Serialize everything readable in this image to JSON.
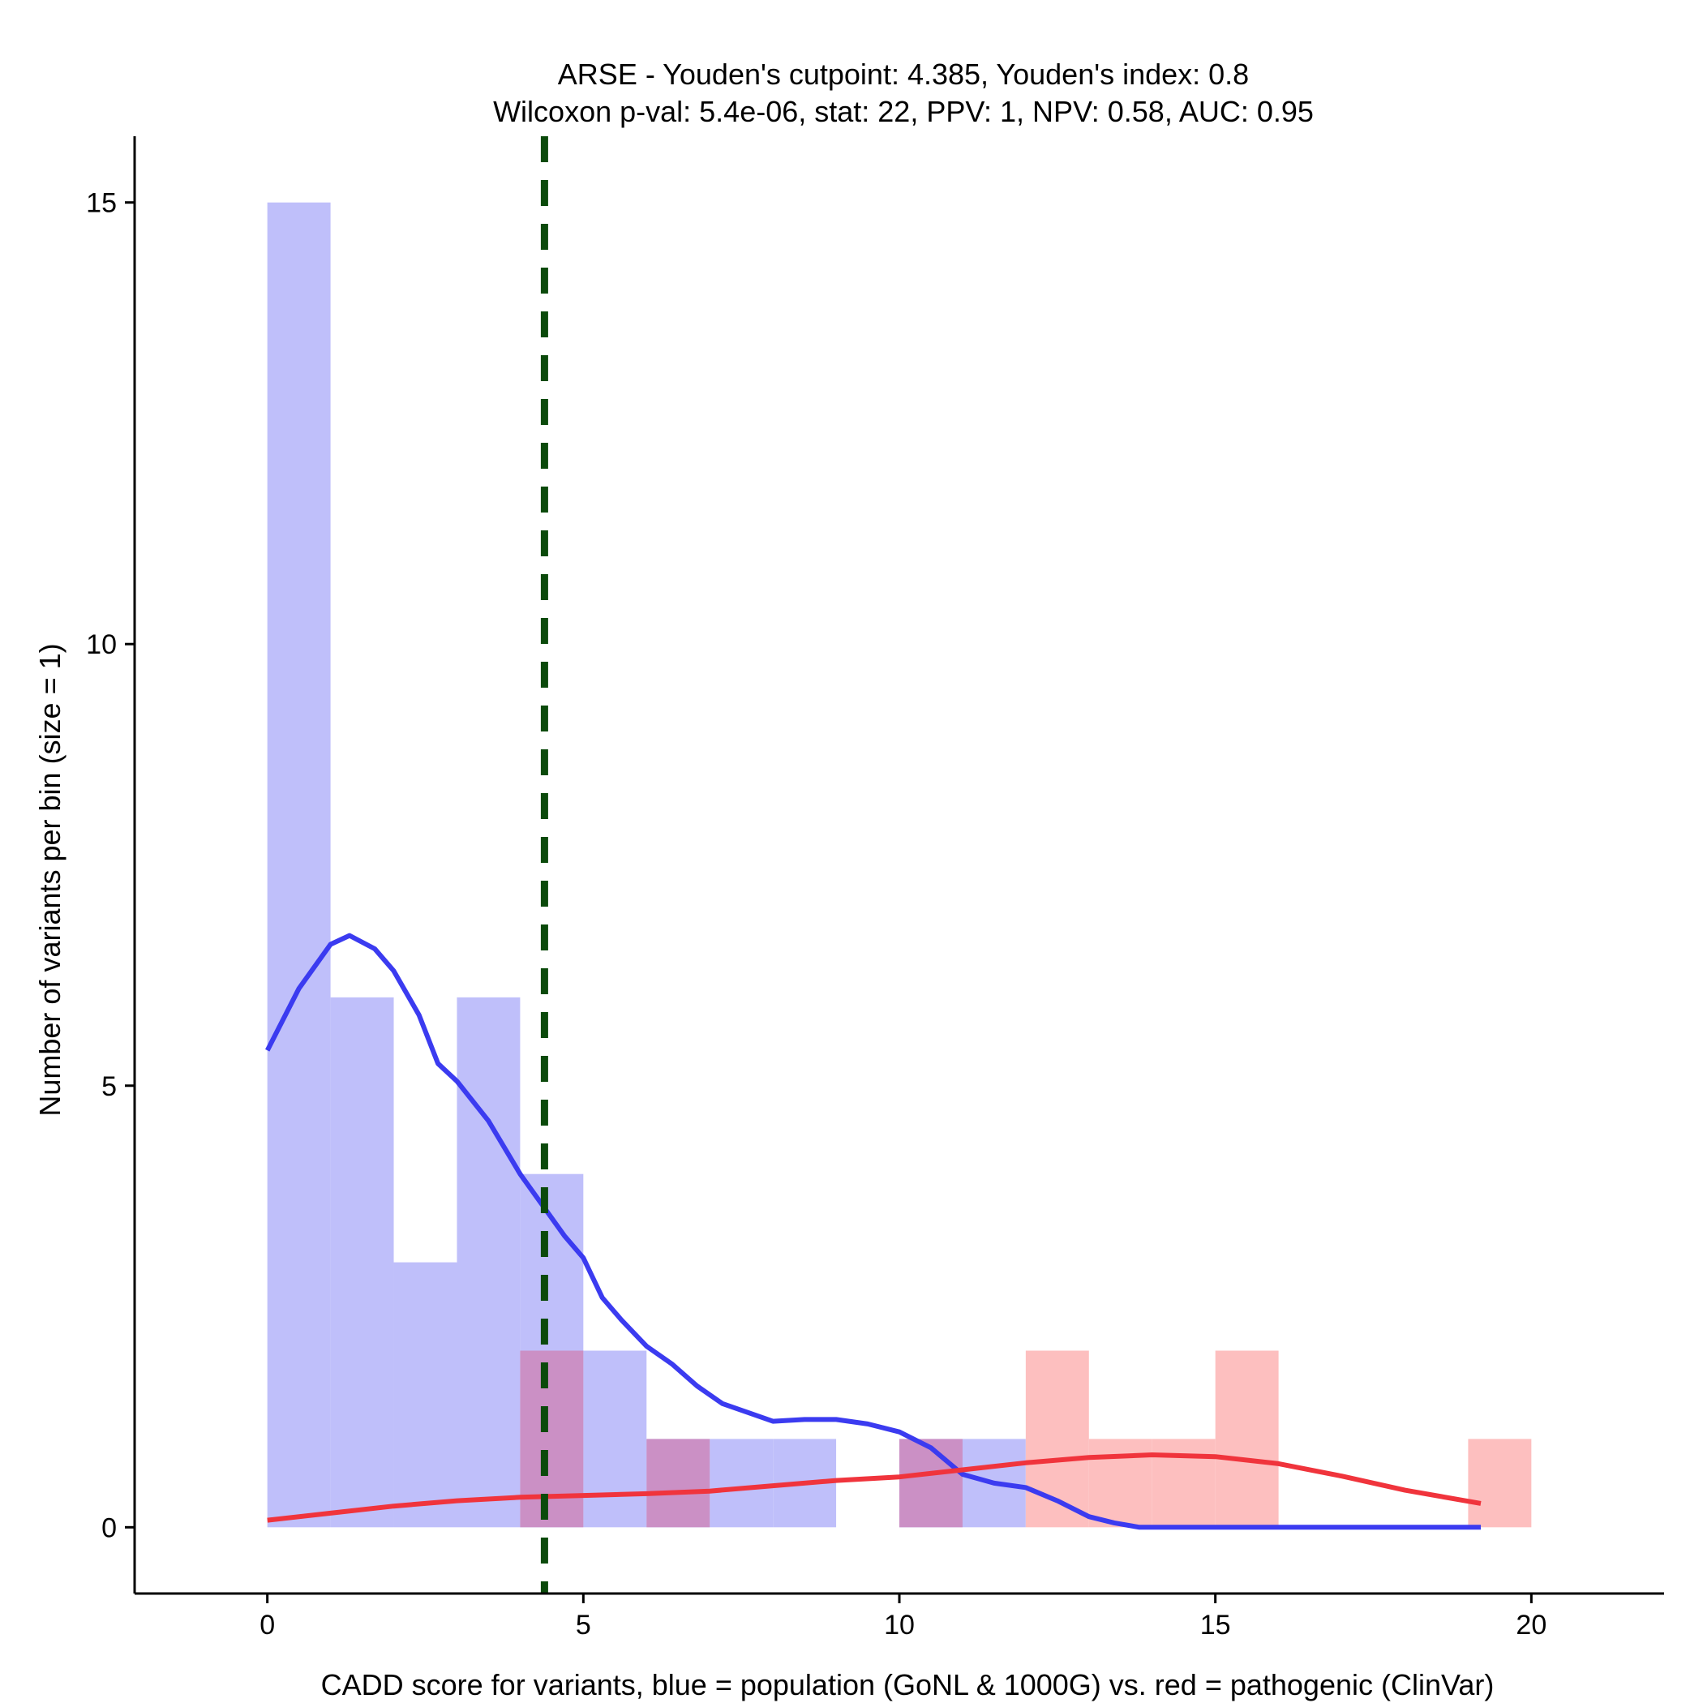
{
  "chart_data": {
    "type": "histogram",
    "title_line1": "ARSE - Youden's cutpoint: 4.385, Youden's index: 0.8",
    "title_line2": "Wilcoxon p-val: 5.4e-06, stat: 22, PPV: 1, NPV: 0.58, AUC: 0.95",
    "xlabel": "CADD score for variants, blue = population (GoNL & 1000G) vs. red = pathogenic (ClinVar)",
    "ylabel": "Number of variants per bin (size = 1)",
    "xlim": [
      -2.1,
      22.1
    ],
    "ylim": [
      -0.75,
      15.75
    ],
    "x_ticks": [
      0,
      5,
      10,
      15,
      20
    ],
    "y_ticks": [
      0,
      5,
      10,
      15
    ],
    "bin_size": 1,
    "cutpoint": 4.385,
    "colors": {
      "population_bar": "#bfbffa",
      "pathogenic_bar": "#fdbfbf",
      "overlap_bar": "#cb90c5",
      "population_line": "#3b3bf0",
      "pathogenic_line": "#f0343c",
      "cutpoint_line": "#0b4a0b"
    },
    "series": [
      {
        "name": "population",
        "bins": [
          {
            "start": 0,
            "count": 15
          },
          {
            "start": 1,
            "count": 6
          },
          {
            "start": 2,
            "count": 3
          },
          {
            "start": 3,
            "count": 6
          },
          {
            "start": 4,
            "count": 4
          },
          {
            "start": 5,
            "count": 2
          },
          {
            "start": 6,
            "count": 1
          },
          {
            "start": 7,
            "count": 1
          },
          {
            "start": 8,
            "count": 1
          },
          {
            "start": 10,
            "count": 1
          },
          {
            "start": 11,
            "count": 1
          }
        ],
        "density_curve": [
          [
            0,
            5.4
          ],
          [
            0.5,
            6.1
          ],
          [
            1.0,
            6.6
          ],
          [
            1.3,
            6.7
          ],
          [
            1.7,
            6.55
          ],
          [
            2.0,
            6.3
          ],
          [
            2.4,
            5.8
          ],
          [
            2.7,
            5.25
          ],
          [
            3.0,
            5.05
          ],
          [
            3.5,
            4.6
          ],
          [
            4.0,
            4.0
          ],
          [
            4.3,
            3.7
          ],
          [
            4.7,
            3.3
          ],
          [
            5.0,
            3.05
          ],
          [
            5.3,
            2.6
          ],
          [
            5.6,
            2.35
          ],
          [
            6.0,
            2.05
          ],
          [
            6.4,
            1.85
          ],
          [
            6.8,
            1.6
          ],
          [
            7.2,
            1.4
          ],
          [
            7.6,
            1.3
          ],
          [
            8.0,
            1.2
          ],
          [
            8.5,
            1.22
          ],
          [
            9.0,
            1.22
          ],
          [
            9.5,
            1.17
          ],
          [
            10.0,
            1.08
          ],
          [
            10.5,
            0.9
          ],
          [
            11.0,
            0.6
          ],
          [
            11.5,
            0.5
          ],
          [
            12.0,
            0.45
          ],
          [
            12.5,
            0.3
          ],
          [
            13.0,
            0.12
          ],
          [
            13.4,
            0.05
          ],
          [
            13.8,
            0.0
          ],
          [
            19.2,
            0.0
          ]
        ]
      },
      {
        "name": "pathogenic",
        "bins": [
          {
            "start": 4,
            "count": 2
          },
          {
            "start": 6,
            "count": 1
          },
          {
            "start": 10,
            "count": 1
          },
          {
            "start": 12,
            "count": 2
          },
          {
            "start": 13,
            "count": 1
          },
          {
            "start": 14,
            "count": 1
          },
          {
            "start": 15,
            "count": 2
          },
          {
            "start": 19,
            "count": 1
          }
        ],
        "density_curve": [
          [
            0,
            0.08
          ],
          [
            1,
            0.16
          ],
          [
            2,
            0.24
          ],
          [
            3,
            0.3
          ],
          [
            4,
            0.34
          ],
          [
            5,
            0.36
          ],
          [
            6,
            0.38
          ],
          [
            7,
            0.41
          ],
          [
            8,
            0.47
          ],
          [
            9,
            0.53
          ],
          [
            10,
            0.57
          ],
          [
            11,
            0.65
          ],
          [
            12,
            0.73
          ],
          [
            13,
            0.79
          ],
          [
            14,
            0.82
          ],
          [
            15,
            0.8
          ],
          [
            16,
            0.72
          ],
          [
            17,
            0.58
          ],
          [
            18,
            0.42
          ],
          [
            19.2,
            0.27
          ]
        ]
      }
    ]
  }
}
